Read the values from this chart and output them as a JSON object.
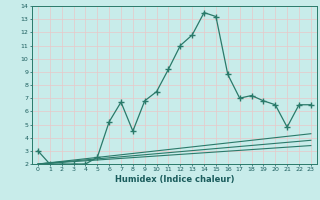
{
  "xlabel": "Humidex (Indice chaleur)",
  "main_x": [
    0,
    1,
    2,
    3,
    4,
    5,
    6,
    7,
    8,
    9,
    10,
    11,
    12,
    13,
    14,
    15,
    16,
    17,
    18,
    19,
    20,
    21,
    22,
    23
  ],
  "main_y": [
    3.0,
    2.0,
    2.0,
    2.0,
    2.0,
    2.5,
    5.2,
    6.7,
    4.5,
    6.8,
    7.5,
    9.2,
    11.0,
    11.8,
    13.5,
    13.2,
    8.8,
    7.0,
    7.2,
    6.8,
    6.5,
    4.8,
    6.5,
    6.5
  ],
  "curves": [
    {
      "x": [
        0,
        23
      ],
      "y": [
        2.0,
        4.3
      ]
    },
    {
      "x": [
        0,
        23
      ],
      "y": [
        2.0,
        3.8
      ]
    },
    {
      "x": [
        0,
        23
      ],
      "y": [
        2.0,
        3.4
      ]
    }
  ],
  "line_color": "#2a7a6a",
  "bg_color": "#c8ecea",
  "grid_color_major": "#e8c8c8",
  "ylim": [
    2,
    14
  ],
  "xlim": [
    -0.5,
    23.5
  ],
  "yticks": [
    2,
    3,
    4,
    5,
    6,
    7,
    8,
    9,
    10,
    11,
    12,
    13,
    14
  ],
  "xticks": [
    0,
    1,
    2,
    3,
    4,
    5,
    6,
    7,
    8,
    9,
    10,
    11,
    12,
    13,
    14,
    15,
    16,
    17,
    18,
    19,
    20,
    21,
    22,
    23
  ]
}
